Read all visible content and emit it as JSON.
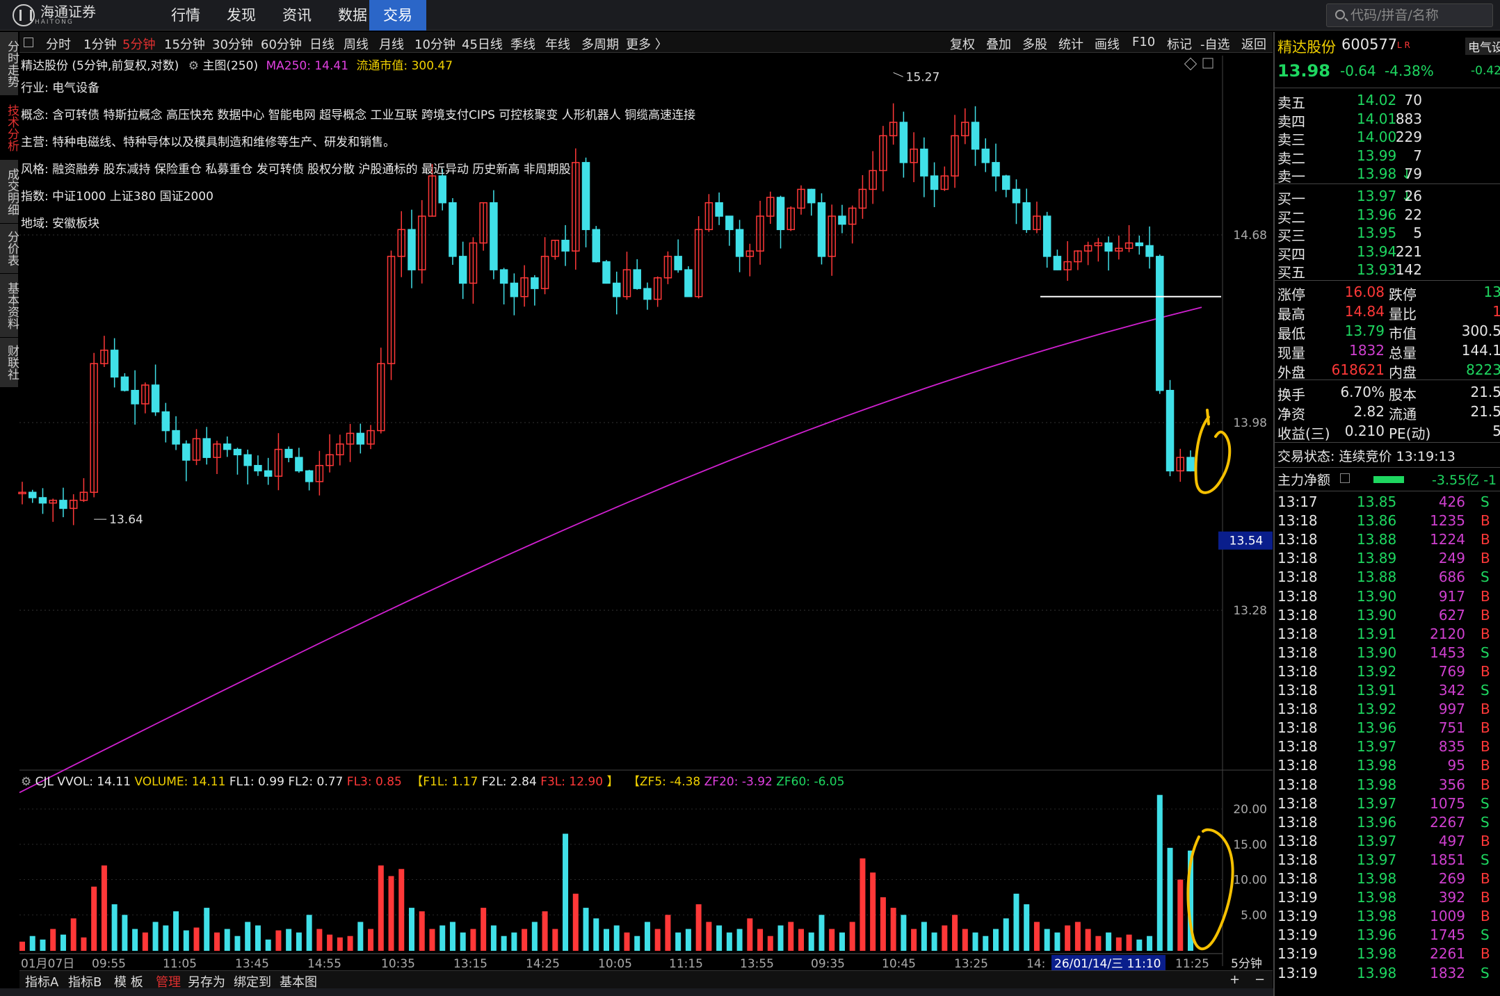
{
  "topnav": {
    "logo": "海通证券",
    "logo_sub": "HAITONG",
    "items": [
      "行情",
      "发现",
      "资讯",
      "数据",
      "交易"
    ],
    "active": "交易",
    "search_placeholder": "代码/拼音/名称"
  },
  "lefttabs": [
    "分时走势",
    "技术分析",
    "成交明细",
    "分价表",
    "基本资料",
    "财联社"
  ],
  "periods": {
    "items": [
      "分时",
      "1分钟",
      "5分钟",
      "15分钟",
      "30分钟",
      "60分钟",
      "日线",
      "周线",
      "月线",
      "10分钟",
      "45日线",
      "季线",
      "年线",
      "多周期",
      "更多 〉"
    ],
    "active": "5分钟"
  },
  "tools": [
    "复权",
    "叠加",
    "多股",
    "统计",
    "画线",
    "F10",
    "标记",
    "-自选",
    "返回"
  ],
  "chart_info": {
    "stock_period": "精达股份 (5分钟,前复权,对数)",
    "main_label": "主图(250)",
    "ma_label": "MA250: 14.41",
    "float_cap": "流通市值: 300.47",
    "industry_key": "行业:",
    "industry": "电气设备",
    "concept_key": "概念:",
    "concept": "含可转债 特斯拉概念 高压快充 数据中心 智能电网 超导概念 工业互联 跨境支付CIPS 可控核聚变 人形机器人 铜缆高速连接",
    "main_biz_key": "主营:",
    "main_biz": "特种电磁线、特种导体以及模具制造和维修等生产、研发和销售。",
    "style_key": "风格:",
    "style": "融资融券 股东减持 保险重仓 私募重仓 发可转债 股权分散 沪股通标的 最近异动 历史新高 非周期股",
    "index_key": "指数:",
    "index": "中证1000 上证380 国证2000",
    "region_key": "地域:",
    "region": "安徽板块"
  },
  "chart_data": {
    "type": "candlestick",
    "price_axis_ticks": [
      "14.68",
      "13.98",
      "13.28"
    ],
    "current_price_tag": "13.54",
    "high_marker": "15.27",
    "low_marker": "13.64",
    "ma_label": "MA250",
    "ma_value": 14.41,
    "support_line": 14.45,
    "x_tick_labels": [
      "01月07日",
      "09:55",
      "11:05",
      "13:45",
      "14:55",
      "10:35",
      "13:15",
      "14:25",
      "10:05",
      "11:15",
      "13:55",
      "09:35",
      "10:45",
      "13:25",
      "14:",
      "26/01/14/三 11:10",
      "11:25"
    ],
    "period_label": "5分钟",
    "volume_axis_ticks": [
      "20.00",
      "15.00",
      "10.00",
      "5.00"
    ],
    "volume_indicator": {
      "name": "CJL",
      "vvol": "VVOL: 14.11",
      "volume": "VOLUME: 14.11",
      "fl1": "FL1: 0.99",
      "fl2": "FL2: 0.77",
      "fl3": "FL3: 0.85",
      "f1l": "【F1L: 1.17",
      "f2l": "F2L: 2.84",
      "f3l": "F3L: 12.90",
      "bracket_close": "】",
      "zf5": "【ZF5: -4.38",
      "zf20": "ZF20: -3.92",
      "zf60": "ZF60: -6.05"
    },
    "closes": [
      13.72,
      13.7,
      13.68,
      13.69,
      13.66,
      13.69,
      13.72,
      14.2,
      14.25,
      14.15,
      14.1,
      14.05,
      14.12,
      14.02,
      13.95,
      13.9,
      13.84,
      13.92,
      13.85,
      13.9,
      13.88,
      13.86,
      13.82,
      13.8,
      13.78,
      13.88,
      13.85,
      13.8,
      13.76,
      13.82,
      13.86,
      13.9,
      13.94,
      13.9,
      13.95,
      14.2,
      14.6,
      14.7,
      14.55,
      14.75,
      14.9,
      14.8,
      14.6,
      14.5,
      14.65,
      14.8,
      14.55,
      14.5,
      14.45,
      14.52,
      14.48,
      14.6,
      14.66,
      14.62,
      14.95,
      14.7,
      14.58,
      14.5,
      14.45,
      14.55,
      14.48,
      14.44,
      14.52,
      14.6,
      14.55,
      14.45,
      14.7,
      14.8,
      14.75,
      14.7,
      14.6,
      14.62,
      14.75,
      14.82,
      14.7,
      14.78,
      14.85,
      14.8,
      14.6,
      14.75,
      14.72,
      14.78,
      14.85,
      14.92,
      15.05,
      15.1,
      14.95,
      15.0,
      14.9,
      14.85,
      14.9,
      15.05,
      15.1,
      15.0,
      14.95,
      14.9,
      14.85,
      14.8,
      14.7,
      14.75,
      14.6,
      14.55,
      14.58,
      14.62,
      14.64,
      14.65,
      14.62,
      14.63,
      14.65,
      14.64,
      14.6,
      14.1,
      13.8,
      13.85,
      13.8
    ],
    "volumes": [
      1.2,
      2.0,
      1.5,
      3.0,
      2.2,
      4.5,
      1.8,
      9.0,
      12.0,
      6.5,
      5.0,
      3.0,
      2.5,
      4.0,
      3.5,
      5.5,
      2.8,
      3.2,
      6.0,
      2.5,
      3.0,
      2.0,
      4.0,
      3.5,
      1.5,
      2.8,
      3.0,
      2.5,
      5.0,
      3.0,
      2.2,
      1.8,
      2.0,
      4.0,
      3.0,
      12.0,
      10.5,
      11.5,
      6.0,
      5.5,
      3.0,
      3.5,
      4.0,
      2.5,
      3.0,
      6.0,
      3.5,
      2.0,
      2.5,
      3.0,
      4.0,
      5.5,
      3.0,
      16.5,
      8.0,
      6.0,
      4.5,
      3.0,
      3.5,
      2.5,
      2.0,
      4.0,
      3.0,
      5.0,
      2.5,
      3.0,
      6.5,
      4.0,
      3.5,
      2.5,
      3.0,
      4.5,
      3.0,
      2.0,
      3.5,
      4.0,
      3.0,
      2.5,
      5.0,
      3.0,
      2.5,
      4.0,
      13.0,
      11.0,
      7.5,
      6.0,
      5.0,
      3.0,
      4.0,
      2.5,
      3.5,
      5.0,
      3.0,
      2.5,
      2.0,
      3.0,
      4.5,
      8.0,
      6.5,
      4.0,
      3.0,
      2.5,
      3.5,
      4.0,
      3.0,
      2.0,
      2.5,
      1.8,
      2.2,
      1.5,
      2.0,
      22.0,
      14.5,
      10.0,
      14.11
    ]
  },
  "quote": {
    "name": "精达股份",
    "code": "600577",
    "badge": "L R",
    "tab2": "电气设",
    "price": "13.98",
    "change": "-0.64",
    "pct": "-4.38%",
    "tab2_pct": "-0.42",
    "asks": [
      {
        "label": "卖五",
        "price": "14.02",
        "vol": "70"
      },
      {
        "label": "卖四",
        "price": "14.01",
        "vol": "883"
      },
      {
        "label": "卖三",
        "price": "14.00",
        "vol": "229"
      },
      {
        "label": "卖二",
        "price": "13.99",
        "vol": "7"
      },
      {
        "label": "卖一",
        "price": "13.98 ↓",
        "vol": "79"
      }
    ],
    "bids": [
      {
        "label": "买一",
        "price": "13.97 ↓",
        "vol": "26"
      },
      {
        "label": "买二",
        "price": "13.96",
        "vol": "22"
      },
      {
        "label": "买三",
        "price": "13.95",
        "vol": "5"
      },
      {
        "label": "买四",
        "price": "13.94",
        "vol": "221"
      },
      {
        "label": "买五",
        "price": "13.93",
        "vol": "142"
      }
    ],
    "stats": [
      {
        "k1": "涨停",
        "v1": "16.08",
        "c1": "red",
        "k2": "跌停",
        "v2": "13",
        "c2": "green"
      },
      {
        "k1": "最高",
        "v1": "14.84",
        "c1": "red",
        "k2": "量比",
        "v2": "1",
        "c2": "red"
      },
      {
        "k1": "最低",
        "v1": "13.79",
        "c1": "green",
        "k2": "市值",
        "v2": "300.5",
        "c2": "white"
      },
      {
        "k1": "现量",
        "v1": "1832",
        "c1": "magenta",
        "k2": "总量",
        "v2": "144.1",
        "c2": "white"
      },
      {
        "k1": "外盘",
        "v1": "618621",
        "c1": "red",
        "k2": "内盘",
        "v2": "8223",
        "c2": "green"
      }
    ],
    "stats2": [
      {
        "k1": "换手",
        "v1": "6.70%",
        "k2": "股本",
        "v2": "21.5"
      },
      {
        "k1": "净资",
        "v1": "2.82",
        "k2": "流通",
        "v2": "21.5"
      },
      {
        "k1": "收益(三)",
        "v1": "0.210",
        "k2": "PE(动)",
        "v2": "5"
      }
    ],
    "trade_status": "交易状态: 连续竞价 13:19:13",
    "main_flow_label": "主力净额",
    "main_flow_value": "-3.55亿 -1"
  },
  "ticks": [
    {
      "t": "13:17",
      "p": "13.85",
      "v": "426",
      "d": "S"
    },
    {
      "t": "13:18",
      "p": "13.86",
      "v": "1235",
      "d": "B"
    },
    {
      "t": "13:18",
      "p": "13.88",
      "v": "1224",
      "d": "B"
    },
    {
      "t": "13:18",
      "p": "13.89",
      "v": "249",
      "d": "B"
    },
    {
      "t": "13:18",
      "p": "13.88",
      "v": "686",
      "d": "S"
    },
    {
      "t": "13:18",
      "p": "13.90",
      "v": "917",
      "d": "B"
    },
    {
      "t": "13:18",
      "p": "13.90",
      "v": "627",
      "d": "B"
    },
    {
      "t": "13:18",
      "p": "13.91",
      "v": "2120",
      "d": "B"
    },
    {
      "t": "13:18",
      "p": "13.90",
      "v": "1453",
      "d": "S"
    },
    {
      "t": "13:18",
      "p": "13.92",
      "v": "769",
      "d": "B"
    },
    {
      "t": "13:18",
      "p": "13.91",
      "v": "342",
      "d": "S"
    },
    {
      "t": "13:18",
      "p": "13.92",
      "v": "997",
      "d": "B"
    },
    {
      "t": "13:18",
      "p": "13.96",
      "v": "751",
      "d": "B"
    },
    {
      "t": "13:18",
      "p": "13.97",
      "v": "835",
      "d": "B"
    },
    {
      "t": "13:18",
      "p": "13.98",
      "v": "95",
      "d": "B"
    },
    {
      "t": "13:18",
      "p": "13.98",
      "v": "356",
      "d": "B"
    },
    {
      "t": "13:18",
      "p": "13.97",
      "v": "1075",
      "d": "S"
    },
    {
      "t": "13:18",
      "p": "13.96",
      "v": "2267",
      "d": "S"
    },
    {
      "t": "13:18",
      "p": "13.97",
      "v": "497",
      "d": "B"
    },
    {
      "t": "13:18",
      "p": "13.97",
      "v": "1851",
      "d": "S"
    },
    {
      "t": "13:18",
      "p": "13.98",
      "v": "269",
      "d": "B"
    },
    {
      "t": "13:19",
      "p": "13.98",
      "v": "392",
      "d": "B"
    },
    {
      "t": "13:19",
      "p": "13.98",
      "v": "1009",
      "d": "B"
    },
    {
      "t": "13:19",
      "p": "13.96",
      "v": "1745",
      "d": "S"
    },
    {
      "t": "13:19",
      "p": "13.98",
      "v": "2261",
      "d": "B"
    },
    {
      "t": "13:19",
      "p": "13.98",
      "v": "1832",
      "d": "S"
    }
  ],
  "bottom_tabs": {
    "items": [
      "指标A",
      "指标B",
      "模 板",
      "管理",
      "另存为",
      "绑定到",
      "基本图"
    ],
    "active": "管理"
  },
  "colors": {
    "up": "#ff3838",
    "down": "#40e0e8",
    "ma": "#d020d0",
    "annotation": "#f5c000"
  }
}
